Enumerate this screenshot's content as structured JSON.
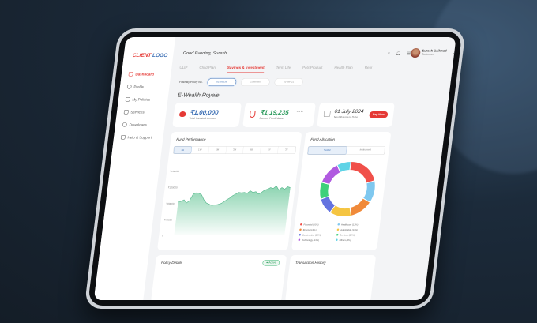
{
  "sidebar": {
    "logo_client": "CLIENT",
    "logo_logo": "LOGO",
    "items": [
      {
        "label": "Dashboard",
        "active": true
      },
      {
        "label": "Profile"
      },
      {
        "label": "My Policies"
      },
      {
        "label": "Services"
      },
      {
        "label": "Downloads"
      },
      {
        "label": "Help & Support"
      }
    ]
  },
  "header": {
    "greeting": "Good Evening, Suresh",
    "user_name": "Suresh Gaikwad",
    "user_role": "Customer",
    "icons": [
      "search-icon",
      "bell-icon",
      "gift-icon"
    ]
  },
  "tabs": [
    "ULIP",
    "Child Plan",
    "Savings & Investment",
    "Term Life",
    "PoS Product",
    "Health Plan",
    "Retir"
  ],
  "active_tab": "Savings & Investment",
  "filter": {
    "label": "Filter By Policy No.",
    "policies": [
      "01488336",
      "01488380",
      "01488421"
    ]
  },
  "policy_name": "E-Wealth Royale",
  "summary": {
    "invested": {
      "value": "₹1,00,000",
      "label": "Total Invested Amount"
    },
    "fund": {
      "value": "₹1,19,235",
      "change": "+17%",
      "label": "Current Fund Value"
    },
    "payment": {
      "date": "01 July 2024",
      "label": "Next Payment Date",
      "button": "Pay Now"
    }
  },
  "fund_performance": {
    "title": "Fund Performance",
    "ranges": [
      "1D",
      "1W",
      "1M",
      "3M",
      "6M",
      "1Y",
      "3Y"
    ],
    "active_range": "1D"
  },
  "fund_allocation": {
    "title": "Fund Allocation",
    "toggle": [
      "Sector",
      "Instrument"
    ],
    "active": "Sector"
  },
  "policy_details": {
    "title": "Policy Details",
    "status": "Active"
  },
  "transaction_history": {
    "title": "Transaction History"
  },
  "colors": {
    "accent": "#e53935",
    "brand": "#3c6fb4",
    "chart": "#7fcfa8"
  },
  "chart_data": [
    {
      "type": "area",
      "y_ticks": [
        "₹160000",
        "₹120000",
        "₹80000",
        "₹40000",
        "0"
      ],
      "ylim": [
        0,
        160000
      ],
      "values": [
        80000,
        82000,
        86000,
        78000,
        84000,
        100000,
        103000,
        102000,
        98000,
        86000,
        78000,
        75000,
        72000,
        73000,
        74000,
        76000,
        80000,
        86000,
        90000,
        96000,
        100000,
        104000,
        103000,
        104000,
        102000,
        108000,
        104000,
        106000,
        100000,
        104000,
        110000,
        112000,
        116000,
        114000,
        120000,
        110000,
        116000,
        112000,
        118000,
        116000
      ]
    },
    {
      "type": "pie",
      "donut": true,
      "slices": [
        {
          "name": "Financial (20%)",
          "value": 20,
          "color": "#f0504a"
        },
        {
          "name": "Healthcare (13%)",
          "value": 13,
          "color": "#7fc8ef"
        },
        {
          "name": "Energy (13%)",
          "value": 13,
          "color": "#f08a3a"
        },
        {
          "name": "Automobile (13%)",
          "value": 13,
          "color": "#f5c542"
        },
        {
          "name": "Construction (10%)",
          "value": 10,
          "color": "#6473e0"
        },
        {
          "name": "Services (10%)",
          "value": 10,
          "color": "#3ed07a"
        },
        {
          "name": "Technology (13%)",
          "value": 13,
          "color": "#b05ae0"
        },
        {
          "name": "Others (8%)",
          "value": 8,
          "color": "#5fd3e6"
        }
      ]
    }
  ]
}
